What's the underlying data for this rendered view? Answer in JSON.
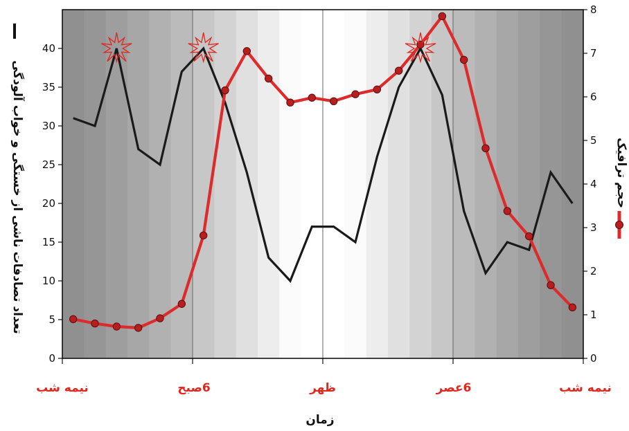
{
  "chart_data": {
    "type": "line",
    "xlabel": "زمان",
    "x_ticks": [
      "نیمه شب",
      "6صبح",
      "ظهر",
      "6عصر",
      "نیمه شب"
    ],
    "x_hours": [
      0,
      1,
      2,
      3,
      4,
      5,
      6,
      7,
      8,
      9,
      10,
      11,
      12,
      13,
      14,
      15,
      16,
      17,
      18,
      19,
      20,
      21,
      22,
      23,
      24
    ],
    "y_left": {
      "label": "تعداد تصادفات ناشی از خستگی و خواب آلودگی",
      "ylim": [
        0,
        45
      ],
      "ticks": [
        0,
        5,
        10,
        15,
        20,
        25,
        30,
        35,
        40
      ]
    },
    "y_right": {
      "label": "حجم ترافیک",
      "ylim": [
        0,
        8
      ],
      "ticks": [
        0,
        1,
        2,
        3,
        4,
        5,
        6,
        7,
        8
      ]
    },
    "series": [
      {
        "axis": "left",
        "color": "#1a1a1a",
        "x": [
          0.5,
          1.5,
          2.5,
          3.5,
          4.5,
          5.5,
          6.5,
          7.5,
          8.5,
          9.5,
          10.5,
          11.5,
          12.5,
          13.5,
          14.5,
          15.5,
          16.5,
          17.5,
          18.5,
          19.5,
          20.5,
          21.5,
          22.5,
          23.5
        ],
        "values": [
          31,
          30,
          40,
          27,
          25,
          37,
          40,
          33,
          24,
          13,
          10,
          17,
          17,
          15,
          26,
          35,
          40,
          34,
          19,
          11,
          15,
          14,
          24,
          20
        ]
      },
      {
        "axis": "right",
        "color": "#dd2a2a",
        "marker_color": "#b81e1e",
        "x": [
          0.5,
          1.5,
          2.5,
          3.5,
          4.5,
          5.5,
          6.5,
          7.5,
          8.5,
          9.5,
          10.5,
          11.5,
          12.5,
          13.5,
          14.5,
          15.5,
          16.5,
          17.5,
          18.5,
          19.5,
          20.5,
          21.5,
          22.5,
          23.5
        ],
        "values": [
          0.9,
          0.8,
          0.73,
          0.7,
          0.92,
          1.25,
          2.82,
          6.15,
          7.05,
          6.42,
          5.87,
          5.98,
          5.9,
          6.06,
          6.17,
          6.6,
          7.2,
          7.85,
          6.85,
          4.82,
          3.38,
          2.8,
          1.68,
          1.17
        ]
      }
    ],
    "peak_markers_at_hours": [
      2.5,
      6.5,
      16.5
    ],
    "grid": false,
    "vertical_lines_at_hours": [
      6,
      12,
      18
    ],
    "colors": {
      "accent": "#e0271f",
      "background_dark": "#8e8e8e",
      "background_light": "#ffffff"
    }
  }
}
